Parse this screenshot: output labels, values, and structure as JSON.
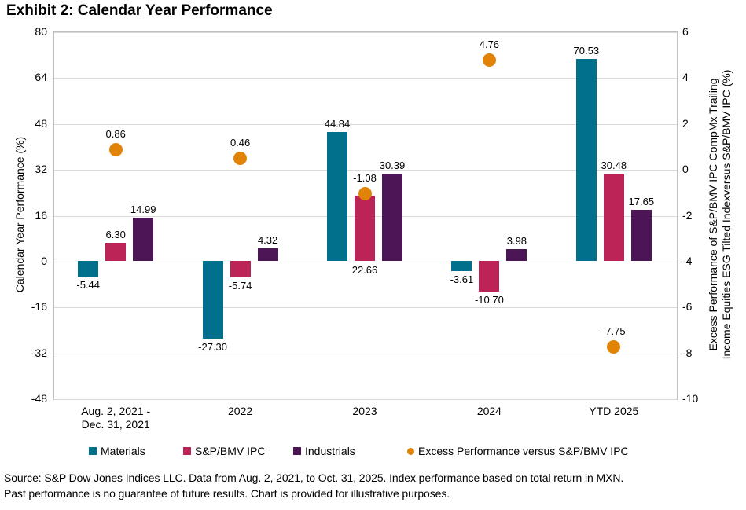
{
  "title": "Exhibit 2: Calendar Year Performance",
  "chart_data": {
    "type": "bar",
    "title": "Exhibit 2: Calendar Year Performance",
    "categories": [
      "Aug. 2, 2021 -\nDec. 31, 2021",
      "2022",
      "2023",
      "2024",
      "YTD 2025"
    ],
    "series": [
      {
        "name": "Materials",
        "type": "bar",
        "color": "#00708c",
        "values": [
          -5.44,
          -27.3,
          44.84,
          -3.61,
          70.53
        ]
      },
      {
        "name": "S&P/BMV IPC",
        "type": "bar",
        "color": "#bc2357",
        "values": [
          6.3,
          -5.74,
          22.66,
          -10.7,
          30.48
        ],
        "label_pos_overrides": {
          "2": "base_below"
        }
      },
      {
        "name": "Industrials",
        "type": "bar",
        "color": "#4c1556",
        "values": [
          14.99,
          4.32,
          30.39,
          3.98,
          17.65
        ]
      },
      {
        "name": "Excess Performance versus S&P/BMV IPC",
        "type": "scatter",
        "axis": "right",
        "color": "#e08307",
        "values": [
          0.86,
          0.46,
          -1.08,
          4.76,
          -7.75
        ]
      }
    ],
    "left_axis": {
      "label": "Calendar Year Performance (%)",
      "min": -48,
      "max": 80,
      "ticks": [
        80,
        64,
        48,
        32,
        16,
        0,
        -16,
        -32,
        -48
      ]
    },
    "right_axis": {
      "label_lines": [
        "Excess Performance of S&P/BMV IPC CompMx Trailing",
        "Income Equities ESG Tilted Indexversus S&P/BMV IPC (%)"
      ],
      "min": -10,
      "max": 6,
      "ticks": [
        6,
        4,
        2,
        0,
        "-2",
        -4,
        -6,
        -8,
        -10
      ]
    },
    "grid": true,
    "legend_position": "bottom",
    "value_label_decimals": 2
  },
  "footer": {
    "line1": "Source: S&P Dow Jones Indices LLC. Data from Aug. 2, 2021, to Oct. 31, 2025. Index performance based on total return in MXN.",
    "line2": "Past performance is no guarantee of future results. Chart is provided for illustrative purposes."
  }
}
